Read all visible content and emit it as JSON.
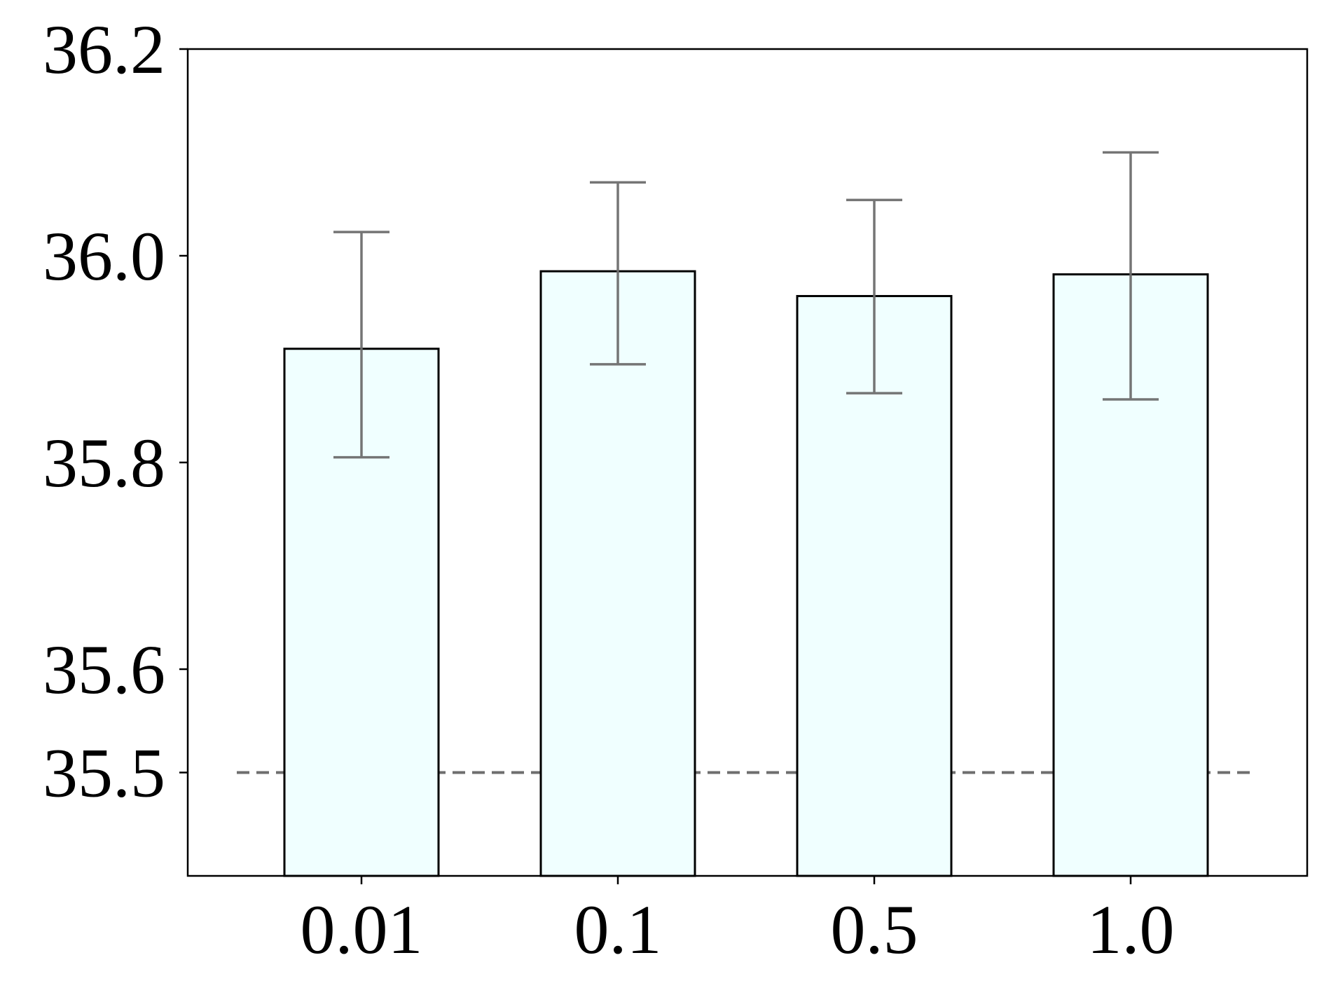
{
  "chart_data": {
    "type": "bar",
    "title": "",
    "xlabel": "",
    "ylabel": "",
    "categories": [
      "0.01",
      "0.1",
      "0.5",
      "1.0"
    ],
    "values": [
      35.91,
      35.985,
      35.961,
      35.982
    ],
    "error": {
      "lower": [
        35.805,
        35.895,
        35.867,
        35.861
      ],
      "upper": [
        36.023,
        36.071,
        36.054,
        36.1
      ]
    },
    "ylim": [
      35.4,
      36.2
    ],
    "yticks": [
      35.5,
      35.6,
      35.8,
      36.0,
      36.2
    ],
    "ytick_labels": [
      "35.5",
      "35.6",
      "35.8",
      "36.0",
      "36.2"
    ],
    "reference_line": {
      "y": 35.5,
      "style": "dashed"
    },
    "grid": false,
    "legend": "none",
    "colors": {
      "bar_fill": "#f0ffff",
      "bar_edge": "#000000",
      "error_bar": "#6e6e6e",
      "reference_line": "#6e6e6e",
      "axis": "#000000"
    }
  }
}
